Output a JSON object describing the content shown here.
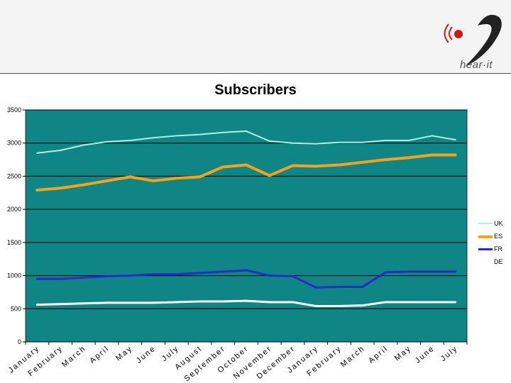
{
  "brand": {
    "logo_text": "hear·it"
  },
  "chart_data": {
    "type": "line",
    "title": "Subscribers",
    "xlabel": "",
    "ylabel": "",
    "ylim": [
      0,
      3500
    ],
    "yticks": [
      0,
      500,
      1000,
      1500,
      2000,
      2500,
      3000,
      3500
    ],
    "grid": true,
    "legend_position": "right",
    "plot_background": "#0f8585",
    "categories": [
      "January",
      "February",
      "March",
      "April",
      "May",
      "June",
      "July",
      "August",
      "September",
      "October",
      "November",
      "December",
      "January",
      "February",
      "March",
      "April",
      "May",
      "June",
      "July"
    ],
    "series": [
      {
        "name": "UK",
        "color": "#aef0e8",
        "values": [
          2850,
          2890,
          2970,
          3020,
          3040,
          3080,
          3110,
          3130,
          3160,
          3180,
          3030,
          3000,
          2990,
          3010,
          3010,
          3040,
          3040,
          3110,
          3050
        ]
      },
      {
        "name": "ES",
        "color": "#f5a21a",
        "values": [
          2290,
          2320,
          2370,
          2430,
          2490,
          2430,
          2470,
          2490,
          2640,
          2670,
          2510,
          2660,
          2650,
          2670,
          2710,
          2750,
          2780,
          2820,
          2820
        ]
      },
      {
        "name": "FR",
        "color": "#2a2acc",
        "values": [
          950,
          950,
          970,
          990,
          1000,
          1020,
          1020,
          1040,
          1060,
          1080,
          1000,
          990,
          820,
          830,
          830,
          1050,
          1060,
          1060,
          1060
        ]
      },
      {
        "name": "DE",
        "color": "#ffffff",
        "values": [
          560,
          570,
          580,
          590,
          590,
          590,
          600,
          610,
          610,
          620,
          600,
          600,
          540,
          540,
          550,
          600,
          600,
          600,
          600
        ]
      }
    ]
  }
}
